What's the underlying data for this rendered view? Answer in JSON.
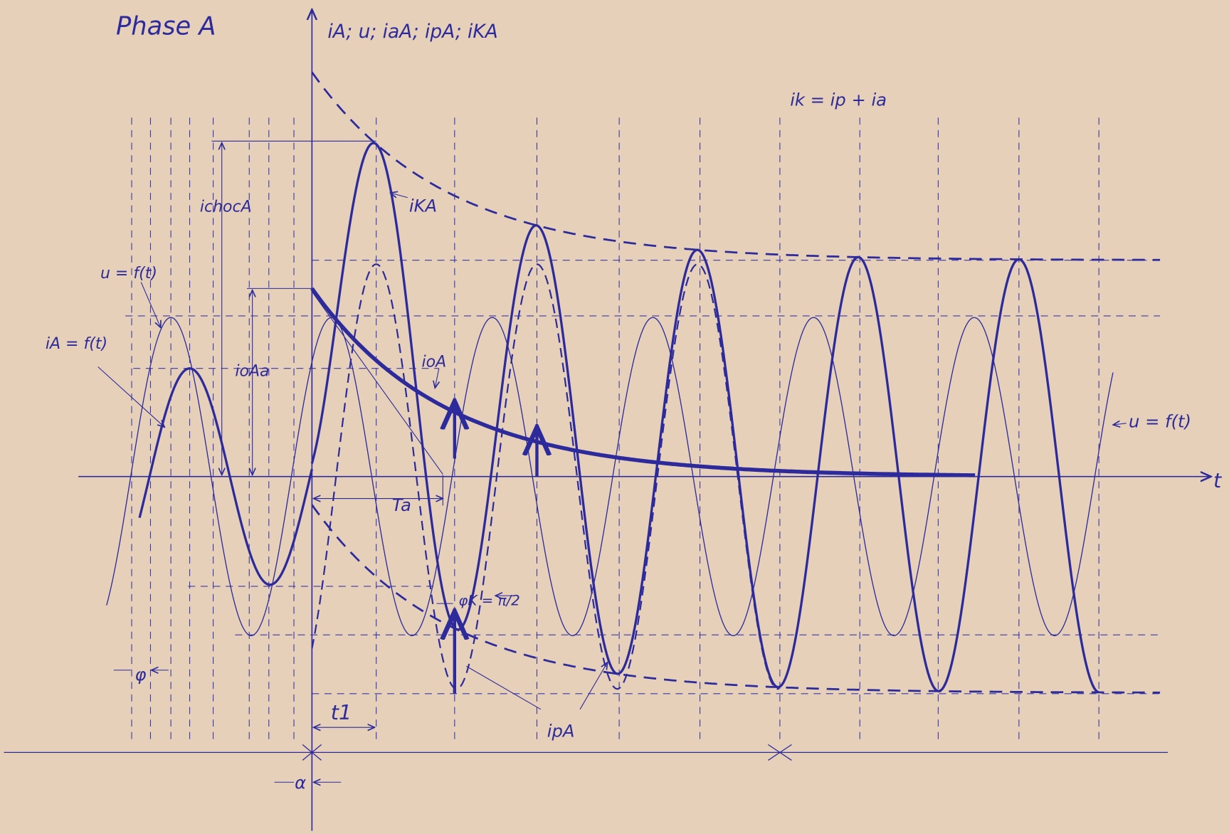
{
  "title": "Phase A",
  "axes": {
    "y_label": "iA; u; iaA; ipA; iKA",
    "x_label": "t"
  },
  "labels": {
    "sum_formula": "ik = ip + ia",
    "short_circuit_current": "iKA",
    "peak_current": "ichocA",
    "voltage_left": "u = f(t)",
    "current_before": "iA = f(t)",
    "aperiodic_component": "ioA",
    "aperiodic_initial": "ioAa",
    "time_constant": "Ta",
    "phase_angle": "φK = π/2",
    "periodic_component": "ipA",
    "peak_time": "t1",
    "phi": "φ",
    "alpha": "α",
    "voltage_right": "u = f(t)"
  }
}
